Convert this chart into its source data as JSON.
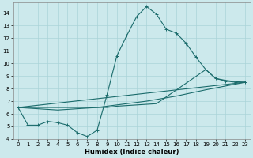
{
  "xlabel": "Humidex (Indice chaleur)",
  "background_color": "#cce9ec",
  "grid_color": "#aad4d8",
  "line_color": "#1a6b6b",
  "xlim": [
    -0.5,
    23.5
  ],
  "ylim": [
    4,
    14.8
  ],
  "yticks": [
    4,
    5,
    6,
    7,
    8,
    9,
    10,
    11,
    12,
    13,
    14
  ],
  "xticks": [
    0,
    1,
    2,
    3,
    4,
    5,
    6,
    7,
    8,
    9,
    10,
    11,
    12,
    13,
    14,
    15,
    16,
    17,
    18,
    19,
    20,
    21,
    22,
    23
  ],
  "line1_x": [
    0,
    1,
    2,
    3,
    4,
    5,
    6,
    7,
    8,
    9,
    10,
    11,
    12,
    13,
    14,
    15,
    16,
    17,
    18,
    19,
    20,
    21,
    22,
    23
  ],
  "line1_y": [
    6.5,
    5.1,
    5.1,
    5.4,
    5.3,
    5.1,
    4.5,
    4.2,
    4.7,
    7.5,
    10.6,
    12.2,
    13.7,
    14.5,
    13.9,
    12.7,
    12.4,
    11.6,
    10.5,
    9.5,
    8.8,
    8.6,
    8.5,
    8.5
  ],
  "line2_x": [
    0,
    23
  ],
  "line2_y": [
    6.5,
    8.5
  ],
  "line3_x": [
    0,
    9,
    10,
    12,
    14,
    19,
    20,
    21,
    22,
    23
  ],
  "line3_y": [
    6.5,
    6.5,
    6.6,
    6.7,
    6.8,
    9.5,
    8.8,
    8.65,
    8.55,
    8.5
  ],
  "line4_x": [
    0,
    4,
    8,
    10,
    13,
    16,
    19,
    21,
    23
  ],
  "line4_y": [
    6.5,
    6.3,
    6.5,
    6.7,
    7.0,
    7.4,
    7.9,
    8.2,
    8.5
  ],
  "xlabel_fontsize": 6,
  "tick_fontsize": 5
}
